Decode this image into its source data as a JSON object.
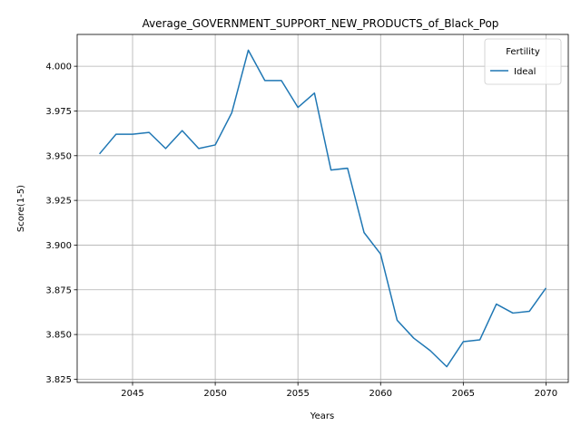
{
  "chart_data": {
    "type": "line",
    "title": "Average_GOVERNMENT_SUPPORT_NEW_PRODUCTS_of_Black_Pop",
    "xlabel": "Years",
    "ylabel": "Score(1-5)",
    "x": [
      2043,
      2044,
      2045,
      2046,
      2047,
      2048,
      2049,
      2050,
      2051,
      2052,
      2053,
      2054,
      2055,
      2056,
      2057,
      2058,
      2059,
      2060,
      2061,
      2062,
      2063,
      2064,
      2065,
      2066,
      2067,
      2068,
      2069,
      2070
    ],
    "series": [
      {
        "name": "Ideal",
        "color": "#1f77b4",
        "values": [
          3.951,
          3.962,
          3.962,
          3.963,
          3.954,
          3.964,
          3.954,
          3.956,
          3.974,
          4.009,
          3.992,
          3.992,
          3.977,
          3.985,
          3.942,
          3.943,
          3.907,
          3.895,
          3.858,
          3.848,
          3.841,
          3.832,
          3.846,
          3.847,
          3.867,
          3.862,
          3.863,
          3.876
        ]
      }
    ],
    "xlim": [
      2041.65,
      2071.35
    ],
    "ylim": [
      3.8232,
      4.0178
    ],
    "x_ticks": [
      2045,
      2050,
      2055,
      2060,
      2065,
      2070
    ],
    "y_ticks": [
      3.825,
      3.85,
      3.875,
      3.9,
      3.925,
      3.95,
      3.975,
      4.0
    ],
    "y_tick_labels": [
      "3.825",
      "3.850",
      "3.875",
      "3.900",
      "3.925",
      "3.950",
      "3.975",
      "4.000"
    ],
    "legend": {
      "title": "Fertility",
      "position": "top-right"
    },
    "grid": true
  }
}
